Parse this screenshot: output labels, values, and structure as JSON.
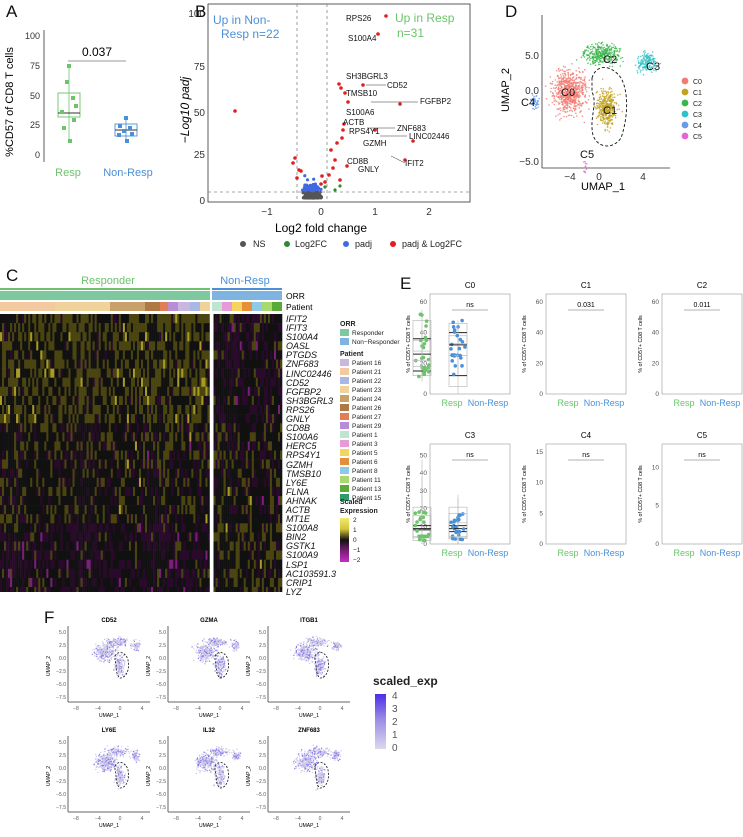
{
  "panels": {
    "A": {
      "letter": "A",
      "ylabel": "%CD57 of CD8 T cells",
      "yticks": [
        "0",
        "25",
        "50",
        "75",
        "100"
      ],
      "categories": [
        "Resp",
        "Non-Resp"
      ],
      "pvalue": "0.037",
      "colors": {
        "resp": "#6cc36c",
        "nonresp": "#4a90d9"
      }
    },
    "B": {
      "letter": "B",
      "title_left": "Up in Non-\nResp n=22",
      "title_left_l1": "Up in Non-",
      "title_left_l2": "Resp n=22",
      "title_right": "Up in Resp\nn=31",
      "title_right_l1": "Up in Resp",
      "title_right_l2": "n=31",
      "ylabel": "−Log10 padj",
      "xlabel": "Log2 fold change",
      "yticks": [
        "0",
        "25",
        "50",
        "75",
        "100"
      ],
      "xticks": [
        "−1",
        "0",
        "1",
        "2"
      ],
      "gene_labels": [
        "RPS26",
        "S100A4",
        "SH3BGRL3",
        "CD52",
        "TMSB10",
        "FGFBP2",
        "S100A6",
        "ACTB",
        "ZNF683",
        "RPS4Y1",
        "LINC02446",
        "GZMH",
        "IFIT2",
        "CD8B",
        "GNLY"
      ],
      "legend": [
        {
          "label": "NS",
          "color": "#555555"
        },
        {
          "label": "Log2FC",
          "color": "#2e8b2e"
        },
        {
          "label": "padj",
          "color": "#4169e1"
        },
        {
          "label": "padj & Log2FC",
          "color": "#e02020"
        }
      ]
    },
    "C": {
      "letter": "C",
      "responder_label": "Responder",
      "nonresp_label": "Non-Resp",
      "row_labels": [
        "ORR",
        "Patient"
      ],
      "genes": [
        "IFIT2",
        "IFIT3",
        "S100A4",
        "OASL",
        "PTGDS",
        "ZNF683",
        "LINC02446",
        "CD52",
        "FGFBP2",
        "SH3BGRL3",
        "RPS26",
        "GNLY",
        "CD8B",
        "S100A6",
        "HERC5",
        "RPS4Y1",
        "GZMH",
        "TMSB10",
        "LY6E",
        "FLNA",
        "AHNAK",
        "ACTB",
        "MT1E",
        "S100A8",
        "BIN2",
        "GSTK1",
        "S100A9",
        "LSP1",
        "AC103591.3",
        "CRIP1",
        "LYZ"
      ],
      "legend_orr_title": "ORR",
      "legend_orr": [
        {
          "label": "Responder",
          "color": "#7ec8a0"
        },
        {
          "label": "Non−Responder",
          "color": "#7fb3e0"
        }
      ],
      "legend_patient_title": "Patient",
      "legend_patient": [
        {
          "label": "Patient 16",
          "color": "#c9b7e0"
        },
        {
          "label": "Patient 21",
          "color": "#f3c9a0"
        },
        {
          "label": "Patient 22",
          "color": "#a9b7e6"
        },
        {
          "label": "Patient 23",
          "color": "#f0d39a"
        },
        {
          "label": "Patient 24",
          "color": "#c8a06a"
        },
        {
          "label": "Patient 26",
          "color": "#b07845"
        },
        {
          "label": "Patient 27",
          "color": "#e27d55"
        },
        {
          "label": "Patient 29",
          "color": "#b98cd6"
        },
        {
          "label": "Patient 1",
          "color": "#bfe5d0"
        },
        {
          "label": "Patient 3",
          "color": "#e79ad8"
        },
        {
          "label": "Patient 5",
          "color": "#f4d35e"
        },
        {
          "label": "Patient 6",
          "color": "#e58f3a"
        },
        {
          "label": "Patient 8",
          "color": "#8fc9ea"
        },
        {
          "label": "Patient 11",
          "color": "#a8d86e"
        },
        {
          "label": "Patient 13",
          "color": "#5aaa3a"
        },
        {
          "label": "Patient 15",
          "color": "#2f9a6a"
        }
      ],
      "legend_scale_title": "Scaled Expression",
      "legend_scale_ticks": [
        "2",
        "1",
        "0",
        "−1",
        "−2"
      ]
    },
    "D": {
      "letter": "D",
      "xlabel": "UMAP_1",
      "ylabel": "UMAP_2",
      "xticks": [
        "−4",
        "0",
        "4"
      ],
      "yticks": [
        "5.0",
        "2.5",
        "0.0",
        "−2.5",
        "−5.0"
      ],
      "cluster_labels": [
        "C0",
        "C1",
        "C2",
        "C3",
        "C4",
        "C5"
      ],
      "legend": [
        {
          "label": "C0",
          "color": "#f27b72"
        },
        {
          "label": "C1",
          "color": "#c2a31f"
        },
        {
          "label": "C2",
          "color": "#39b54a"
        },
        {
          "label": "C3",
          "color": "#2fc2c6"
        },
        {
          "label": "C4",
          "color": "#6a9be8"
        },
        {
          "label": "C5",
          "color": "#e466d6"
        }
      ]
    },
    "E": {
      "letter": "E",
      "ylabel": "% of CD57+ CD8 T cells",
      "categories": [
        "Resp",
        "Non-Resp"
      ],
      "subplots": [
        {
          "title": "C0",
          "sig": "ns",
          "yticks": [
            "0",
            "20",
            "40",
            "60"
          ]
        },
        {
          "title": "C1",
          "sig": "0.031",
          "yticks": [
            "0",
            "20",
            "40",
            "60"
          ]
        },
        {
          "title": "C2",
          "sig": "0.011",
          "yticks": [
            "0",
            "20",
            "40",
            "60"
          ]
        },
        {
          "title": "C3",
          "sig": "ns",
          "yticks": [
            "0",
            "10",
            "20",
            "30",
            "40",
            "50"
          ]
        },
        {
          "title": "C4",
          "sig": "ns",
          "yticks": [
            "0",
            "5",
            "10",
            "15"
          ]
        },
        {
          "title": "C5",
          "sig": "ns",
          "yticks": [
            "0",
            "5",
            "10"
          ]
        }
      ]
    },
    "F": {
      "letter": "F",
      "genes": [
        "CD52",
        "GZMA",
        "ITGB1",
        "LY6E",
        "IL32",
        "ZNF683"
      ],
      "xlabel": "UMAP_1",
      "ylabel": "UMAP_2",
      "xticks": [
        "−8",
        "−4",
        "0",
        "4"
      ],
      "yticks": [
        "5.0",
        "2.5",
        "0.0",
        "−2.5",
        "−5.0",
        "−7.5"
      ],
      "legend_title": "scaled_exp",
      "legend_ticks": [
        "4",
        "3",
        "2",
        "1",
        "0"
      ]
    }
  }
}
